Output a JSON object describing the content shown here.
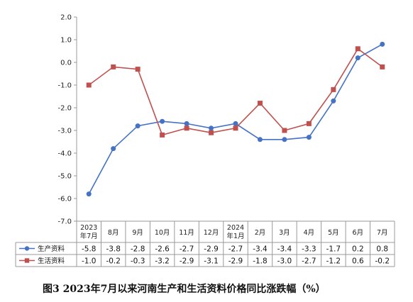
{
  "chart_data": {
    "type": "line",
    "title": "",
    "caption": "图3   2023年7月以来河南生产和生活资料价格同比涨跌幅（%）",
    "categories": [
      [
        "2023",
        "年7月"
      ],
      [
        "8月"
      ],
      [
        "9月"
      ],
      [
        "10月"
      ],
      [
        "11月"
      ],
      [
        "12月"
      ],
      [
        "2024",
        "年1月"
      ],
      [
        "2月"
      ],
      [
        "3月"
      ],
      [
        "4月"
      ],
      [
        "5月"
      ],
      [
        "6月"
      ],
      [
        "7月"
      ]
    ],
    "ylim": [
      -7.0,
      2.0
    ],
    "yticks": [
      "2.0",
      "1.0",
      "0.0",
      "-1.0",
      "-2.0",
      "-3.0",
      "-4.0",
      "-5.0",
      "-6.0",
      "-7.0"
    ],
    "ytick_values": [
      2,
      1,
      0,
      -1,
      -2,
      -3,
      -4,
      -5,
      -6,
      -7
    ],
    "grid": false,
    "legend_placement": "bottom-table",
    "series": [
      {
        "name": "生产资料",
        "color": "#4472C4",
        "marker": "circle",
        "values": [
          -5.8,
          -3.8,
          -2.8,
          -2.6,
          -2.7,
          -2.9,
          -2.7,
          -3.4,
          -3.4,
          -3.3,
          -1.7,
          0.2,
          0.8
        ],
        "labels": [
          "-5.8",
          "-3.8",
          "-2.8",
          "-2.6",
          "-2.7",
          "-2.9",
          "-2.7",
          "-3.4",
          "-3.4",
          "-3.3",
          "-1.7",
          "0.2",
          "0.8"
        ]
      },
      {
        "name": "生活资料",
        "color": "#C0504D",
        "marker": "square",
        "values": [
          -1.0,
          -0.2,
          -0.3,
          -3.2,
          -2.9,
          -3.1,
          -2.9,
          -1.8,
          -3.0,
          -2.7,
          -1.2,
          0.6,
          -0.2
        ],
        "labels": [
          "-1.0",
          "-0.2",
          "-0.3",
          "-3.2",
          "-2.9",
          "-3.1",
          "-2.9",
          "-1.8",
          "-3.0",
          "-2.7",
          "-1.2",
          "0.6",
          "-0.2"
        ]
      }
    ]
  }
}
